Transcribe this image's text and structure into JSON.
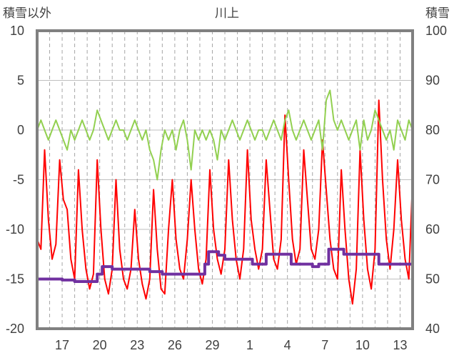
{
  "chart_data": {
    "type": "line",
    "title": "川上",
    "ylabel_left": "積雪以外",
    "ylabel_right": "積雪",
    "left_axis": {
      "min": -20,
      "max": 10,
      "ticks": [
        "10",
        "5",
        "0",
        "-5",
        "-10",
        "-15",
        "-20"
      ]
    },
    "right_axis": {
      "min": 40,
      "max": 100,
      "ticks": [
        "100",
        "90",
        "80",
        "70",
        "60",
        "50",
        "40"
      ]
    },
    "x_axis": {
      "min": 15,
      "max": 45,
      "tick_labels": [
        "17",
        "20",
        "23",
        "26",
        "29",
        "1",
        "4",
        "7",
        "10",
        "13"
      ],
      "tick_days": [
        17,
        20,
        23,
        26,
        29,
        32,
        35,
        38,
        41,
        44
      ]
    },
    "grid": {
      "vertical": "dashed-daily",
      "horizontal": "solid"
    },
    "series": [
      {
        "color": "#ff0000",
        "axis": "left",
        "points": [
          [
            15.0,
            -11
          ],
          [
            15.3,
            -12
          ],
          [
            15.6,
            -2
          ],
          [
            15.9,
            -9
          ],
          [
            16.2,
            -13
          ],
          [
            16.5,
            -11.5
          ],
          [
            16.8,
            -3
          ],
          [
            17.1,
            -7
          ],
          [
            17.4,
            -8
          ],
          [
            17.7,
            -13
          ],
          [
            18.0,
            -15
          ],
          [
            18.3,
            -4
          ],
          [
            18.6,
            -10
          ],
          [
            18.9,
            -14
          ],
          [
            19.2,
            -16
          ],
          [
            19.5,
            -14.5
          ],
          [
            19.8,
            -3
          ],
          [
            20.1,
            -10
          ],
          [
            20.4,
            -15
          ],
          [
            20.7,
            -16.5
          ],
          [
            21.0,
            -14
          ],
          [
            21.3,
            -5
          ],
          [
            21.6,
            -12
          ],
          [
            21.9,
            -15
          ],
          [
            22.2,
            -16
          ],
          [
            22.5,
            -14
          ],
          [
            22.8,
            -8
          ],
          [
            23.1,
            -13
          ],
          [
            23.4,
            -15.5
          ],
          [
            23.7,
            -17
          ],
          [
            24.0,
            -15
          ],
          [
            24.3,
            -6
          ],
          [
            24.6,
            -12
          ],
          [
            24.9,
            -16
          ],
          [
            25.2,
            -16.5
          ],
          [
            25.5,
            -10
          ],
          [
            25.8,
            -5
          ],
          [
            26.1,
            -11
          ],
          [
            26.4,
            -14
          ],
          [
            26.7,
            -15
          ],
          [
            27.0,
            -11
          ],
          [
            27.3,
            -5
          ],
          [
            27.6,
            -10
          ],
          [
            27.9,
            -14
          ],
          [
            28.2,
            -15.5
          ],
          [
            28.5,
            -13
          ],
          [
            28.8,
            -4
          ],
          [
            29.1,
            -10
          ],
          [
            29.4,
            -13
          ],
          [
            29.7,
            -14.5
          ],
          [
            30.0,
            -12
          ],
          [
            30.3,
            -3
          ],
          [
            30.6,
            -9
          ],
          [
            30.9,
            -13
          ],
          [
            31.2,
            -15
          ],
          [
            31.5,
            -12
          ],
          [
            31.8,
            -2
          ],
          [
            32.1,
            -9
          ],
          [
            32.4,
            -12
          ],
          [
            32.7,
            -14
          ],
          [
            33.0,
            -12
          ],
          [
            33.3,
            -3
          ],
          [
            33.6,
            -8
          ],
          [
            33.9,
            -13
          ],
          [
            34.2,
            -14
          ],
          [
            34.5,
            -11
          ],
          [
            34.8,
            1.5
          ],
          [
            35.1,
            -5
          ],
          [
            35.4,
            -11
          ],
          [
            35.7,
            -13.5
          ],
          [
            36.0,
            -12
          ],
          [
            36.3,
            -2
          ],
          [
            36.6,
            -7
          ],
          [
            36.9,
            -12
          ],
          [
            37.2,
            -13
          ],
          [
            37.5,
            -10
          ],
          [
            37.8,
            -1
          ],
          [
            38.1,
            -6
          ],
          [
            38.4,
            -11
          ],
          [
            38.7,
            -14
          ],
          [
            39.0,
            -15
          ],
          [
            39.3,
            -4
          ],
          [
            39.6,
            -10
          ],
          [
            39.9,
            -15
          ],
          [
            40.2,
            -17.5
          ],
          [
            40.5,
            -14
          ],
          [
            40.8,
            -2
          ],
          [
            41.1,
            -9
          ],
          [
            41.4,
            -14
          ],
          [
            41.7,
            -16
          ],
          [
            42.0,
            -12
          ],
          [
            42.3,
            3
          ],
          [
            42.6,
            -5
          ],
          [
            42.9,
            -11
          ],
          [
            43.2,
            -14
          ],
          [
            43.5,
            -10
          ],
          [
            43.8,
            -3
          ],
          [
            44.1,
            -9
          ],
          [
            44.4,
            -13
          ],
          [
            44.7,
            -15
          ],
          [
            45.0,
            -5
          ]
        ]
      },
      {
        "color": "#92d050",
        "axis": "left",
        "points": [
          [
            15.0,
            0
          ],
          [
            15.3,
            1
          ],
          [
            15.6,
            0
          ],
          [
            15.9,
            -1
          ],
          [
            16.2,
            0
          ],
          [
            16.5,
            1
          ],
          [
            16.8,
            0
          ],
          [
            17.1,
            -1
          ],
          [
            17.4,
            -2
          ],
          [
            17.7,
            0
          ],
          [
            18.0,
            -1
          ],
          [
            18.3,
            0
          ],
          [
            18.6,
            1
          ],
          [
            18.9,
            0
          ],
          [
            19.2,
            -1
          ],
          [
            19.5,
            0
          ],
          [
            19.8,
            2
          ],
          [
            20.1,
            1
          ],
          [
            20.4,
            0
          ],
          [
            20.7,
            -1
          ],
          [
            21.0,
            0
          ],
          [
            21.3,
            1
          ],
          [
            21.6,
            0
          ],
          [
            21.9,
            0
          ],
          [
            22.2,
            -1
          ],
          [
            22.5,
            0
          ],
          [
            22.8,
            1
          ],
          [
            23.1,
            0
          ],
          [
            23.4,
            -1
          ],
          [
            23.7,
            0
          ],
          [
            24.0,
            -2
          ],
          [
            24.3,
            -3
          ],
          [
            24.6,
            -5
          ],
          [
            24.9,
            -2
          ],
          [
            25.2,
            0
          ],
          [
            25.5,
            -1
          ],
          [
            25.8,
            0
          ],
          [
            26.1,
            -2
          ],
          [
            26.4,
            0
          ],
          [
            26.7,
            1
          ],
          [
            27.0,
            -1
          ],
          [
            27.3,
            -4
          ],
          [
            27.6,
            0
          ],
          [
            27.9,
            -1
          ],
          [
            28.2,
            0
          ],
          [
            28.5,
            -1
          ],
          [
            28.8,
            0
          ],
          [
            29.1,
            -1
          ],
          [
            29.4,
            -3
          ],
          [
            29.7,
            0
          ],
          [
            30.0,
            -1
          ],
          [
            30.3,
            0
          ],
          [
            30.6,
            1
          ],
          [
            30.9,
            0
          ],
          [
            31.2,
            -1
          ],
          [
            31.5,
            0
          ],
          [
            31.8,
            1
          ],
          [
            32.1,
            0
          ],
          [
            32.4,
            -1
          ],
          [
            32.7,
            0
          ],
          [
            33.0,
            0
          ],
          [
            33.3,
            -1
          ],
          [
            33.6,
            0
          ],
          [
            33.9,
            1
          ],
          [
            34.2,
            0
          ],
          [
            34.5,
            -1
          ],
          [
            34.8,
            1
          ],
          [
            35.1,
            2
          ],
          [
            35.4,
            0
          ],
          [
            35.7,
            -1
          ],
          [
            36.0,
            0
          ],
          [
            36.3,
            1
          ],
          [
            36.6,
            0
          ],
          [
            36.9,
            -1
          ],
          [
            37.2,
            0
          ],
          [
            37.5,
            1
          ],
          [
            37.8,
            -2
          ],
          [
            38.1,
            3
          ],
          [
            38.4,
            4
          ],
          [
            38.7,
            1
          ],
          [
            39.0,
            0
          ],
          [
            39.3,
            1
          ],
          [
            39.6,
            0
          ],
          [
            39.9,
            -1
          ],
          [
            40.2,
            0
          ],
          [
            40.5,
            1
          ],
          [
            40.8,
            -2
          ],
          [
            41.1,
            1
          ],
          [
            41.4,
            -1
          ],
          [
            41.7,
            0
          ],
          [
            42.0,
            2
          ],
          [
            42.3,
            1
          ],
          [
            42.6,
            0
          ],
          [
            42.9,
            -1
          ],
          [
            43.2,
            0
          ],
          [
            43.5,
            -2
          ],
          [
            43.8,
            1
          ],
          [
            44.1,
            0
          ],
          [
            44.4,
            -1
          ],
          [
            44.7,
            1
          ],
          [
            45.0,
            0
          ]
        ]
      },
      {
        "color": "#7030a0",
        "axis": "right",
        "points": [
          [
            15.0,
            50
          ],
          [
            16.0,
            50
          ],
          [
            17.0,
            49.8
          ],
          [
            18.0,
            49.5
          ],
          [
            19.0,
            49.5
          ],
          [
            19.8,
            51
          ],
          [
            20.2,
            52.5
          ],
          [
            21.0,
            52
          ],
          [
            22.0,
            52
          ],
          [
            23.0,
            52
          ],
          [
            24.0,
            51.5
          ],
          [
            25.0,
            51
          ],
          [
            26.0,
            51
          ],
          [
            27.0,
            51
          ],
          [
            28.0,
            51
          ],
          [
            28.4,
            53
          ],
          [
            28.7,
            55.5
          ],
          [
            29.5,
            54.8
          ],
          [
            30.0,
            54
          ],
          [
            31.0,
            54
          ],
          [
            32.0,
            54
          ],
          [
            32.2,
            53
          ],
          [
            33.0,
            53
          ],
          [
            33.3,
            55
          ],
          [
            34.0,
            55
          ],
          [
            35.0,
            55
          ],
          [
            35.3,
            53
          ],
          [
            36.0,
            53
          ],
          [
            36.5,
            53
          ],
          [
            37.0,
            52.5
          ],
          [
            37.5,
            53
          ],
          [
            38.0,
            53
          ],
          [
            38.3,
            56
          ],
          [
            39.0,
            56
          ],
          [
            39.5,
            55
          ],
          [
            40.0,
            55
          ],
          [
            41.0,
            55
          ],
          [
            42.0,
            55
          ],
          [
            42.3,
            53
          ],
          [
            43.0,
            53
          ],
          [
            44.0,
            53
          ],
          [
            45.0,
            53
          ]
        ]
      }
    ]
  }
}
